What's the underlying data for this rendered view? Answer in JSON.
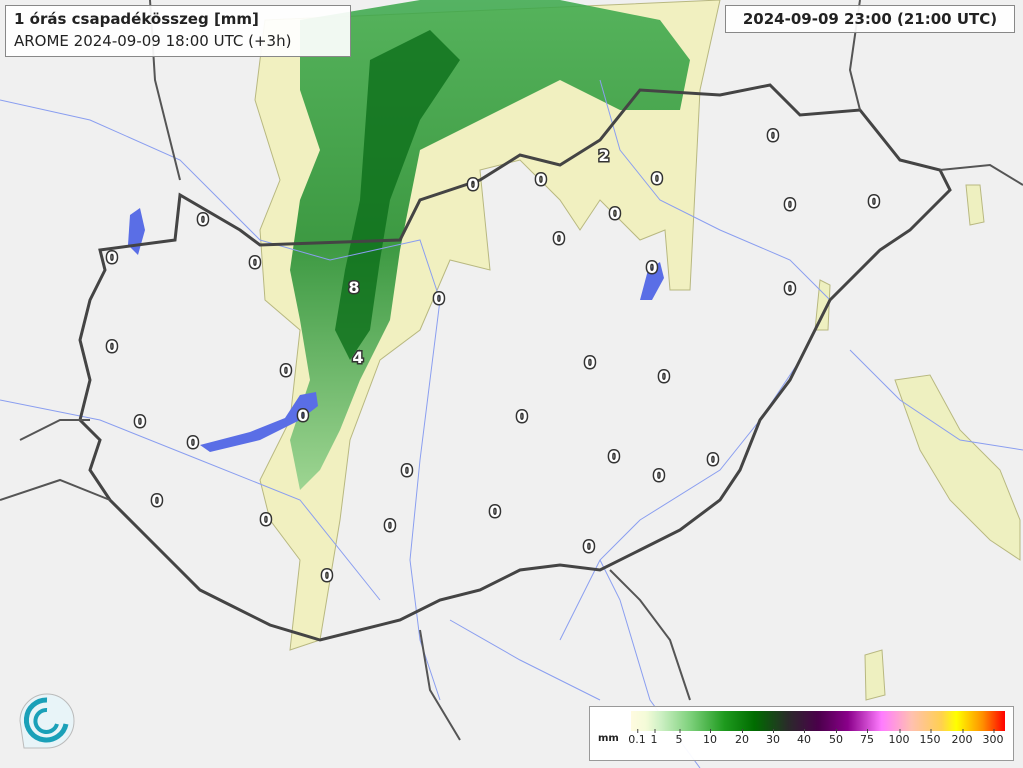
{
  "header": {
    "title": "1 órás csapadékösszeg [mm]",
    "model_run": "AROME 2024-09-09 18:00 UTC (+3h)",
    "valid_time": "2024-09-09 23:00 (21:00 UTC)"
  },
  "legend": {
    "unit": "mm",
    "ticks": [
      "0.1",
      "1",
      "5",
      "10",
      "20",
      "30",
      "40",
      "50",
      "75",
      "100",
      "150",
      "200",
      "300"
    ]
  },
  "stations": [
    0,
    2,
    0,
    0,
    0,
    0,
    0,
    0,
    0,
    0,
    0,
    0,
    0,
    8,
    0,
    0,
    0,
    4,
    0,
    0,
    0,
    0,
    0,
    0,
    0,
    0,
    0,
    0,
    0,
    0,
    0,
    0,
    0,
    0,
    0
  ],
  "colors": {
    "precip_light": "#f4f2bf",
    "precip_green": "#3fae4a",
    "precip_dark": "#0f7a1e",
    "lake": "#5a6ee6",
    "river": "#8a9ef0",
    "border": "#444444"
  }
}
